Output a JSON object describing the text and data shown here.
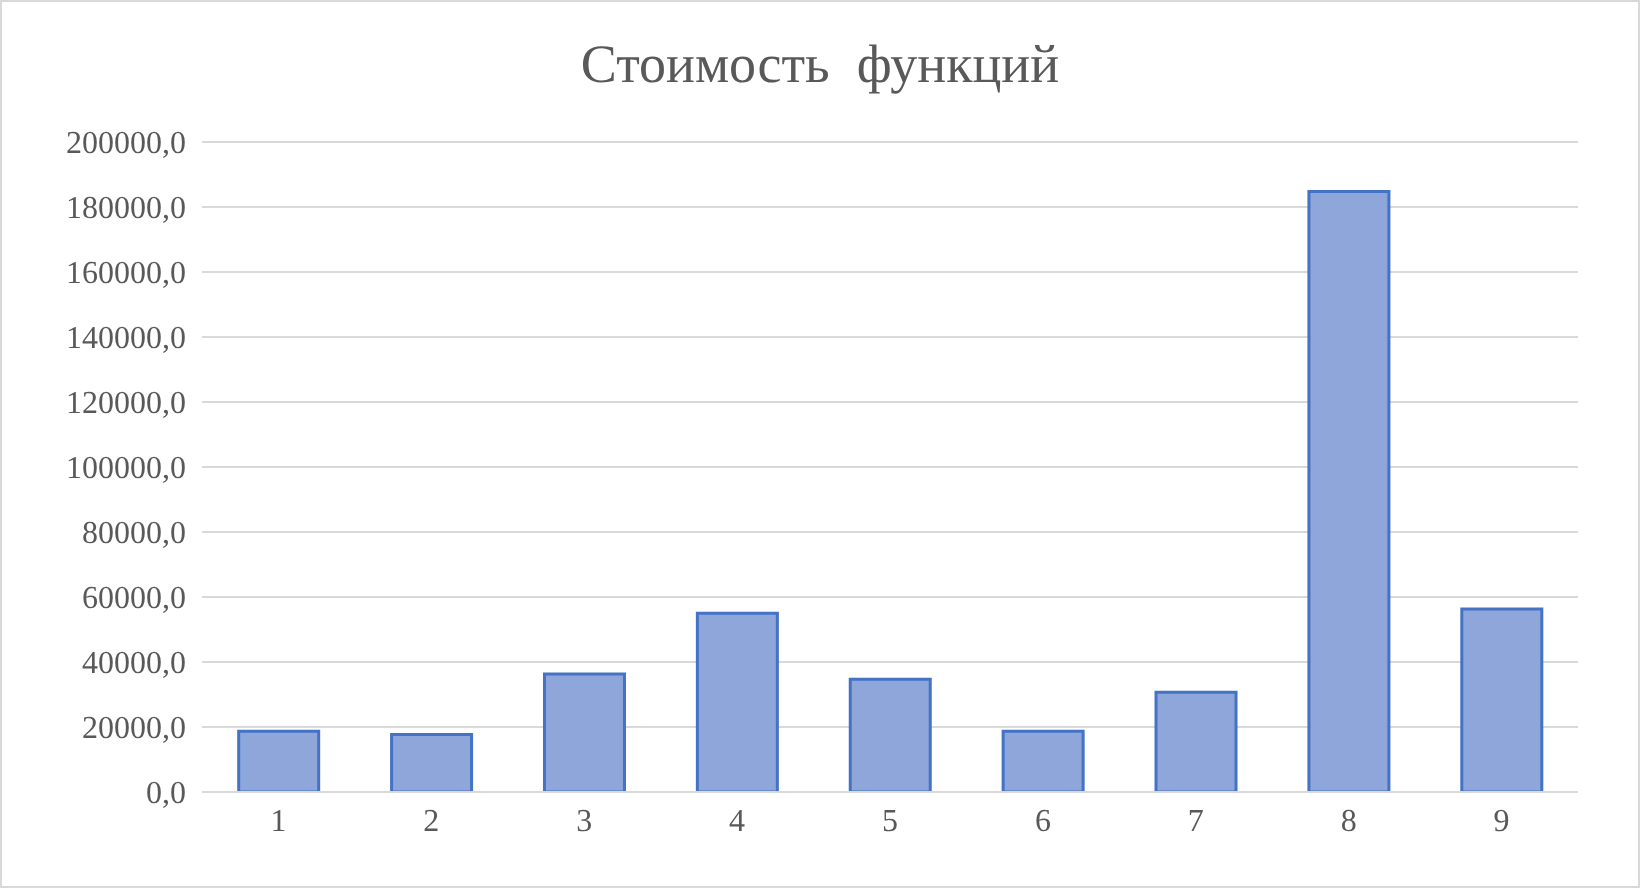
{
  "chart_data": {
    "type": "bar",
    "title": "Стоимость  функций",
    "categories": [
      "1",
      "2",
      "3",
      "4",
      "5",
      "6",
      "7",
      "8",
      "9"
    ],
    "values": [
      18700,
      17700,
      36300,
      55000,
      34700,
      18700,
      30700,
      184800,
      56300
    ],
    "color": "#8fa6da",
    "ylim": [
      0,
      200000
    ],
    "yticks": [
      {
        "value": 0,
        "label": "0,0"
      },
      {
        "value": 20000,
        "label": "20000,0"
      },
      {
        "value": 40000,
        "label": "40000,0"
      },
      {
        "value": 60000,
        "label": "60000,0"
      },
      {
        "value": 80000,
        "label": "80000,0"
      },
      {
        "value": 100000,
        "label": "100000,0"
      },
      {
        "value": 120000,
        "label": "120000,0"
      },
      {
        "value": 140000,
        "label": "140000,0"
      },
      {
        "value": 160000,
        "label": "160000,0"
      },
      {
        "value": 180000,
        "label": "180000,0"
      },
      {
        "value": 200000,
        "label": "200000,0"
      }
    ],
    "grid": "y"
  }
}
